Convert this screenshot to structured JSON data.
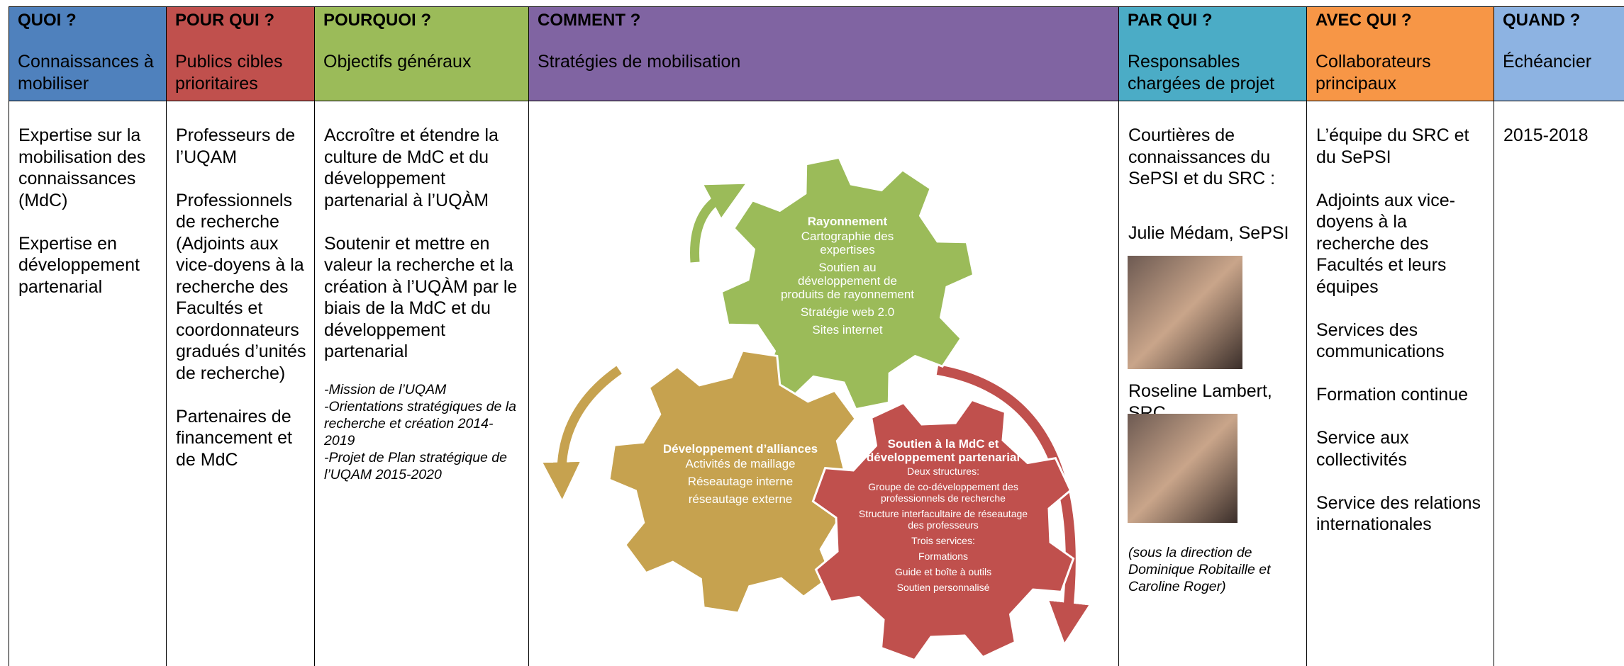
{
  "columns": [
    {
      "header": "QUOI ?",
      "subtitle": "Connaissances à mobiliser",
      "items": [
        "Expertise sur la mobilisation des connaissances (MdC)",
        "Expertise en développement partenarial"
      ]
    },
    {
      "header": "POUR QUI ?",
      "subtitle": "Publics cibles prioritaires",
      "items": [
        "Professeurs de l’UQAM",
        "Professionnels de recherche (Adjoints aux vice-doyens à la recherche des Facultés et coordonnateurs gradués d’unités de recherche)",
        "Partenaires de financement et de MdC"
      ]
    },
    {
      "header": "POURQUOI ?",
      "subtitle": "Objectifs généraux",
      "items": [
        "Accroître et étendre la culture de MdC et du développement partenarial à l’UQÀM",
        "Soutenir et mettre en valeur la recherche et la création à l’UQÀM par le biais de la MdC et du développement partenarial"
      ],
      "notes": [
        "-Mission de l’UQAM",
        "-Orientations stratégiques de la recherche et création 2014-2019",
        "-Projet de Plan stratégique de l’UQAM 2015-2020"
      ]
    },
    {
      "header": "COMMENT ?",
      "subtitle": "Stratégies de mobilisation",
      "gears": [
        {
          "title": "Rayonnement",
          "lines": [
            "Cartographie des expertises",
            "Soutien au développement de produits de rayonnement",
            "Stratégie web 2.0",
            "Sites internet"
          ]
        },
        {
          "title": "Développement d’alliances",
          "lines": [
            "Activités de maillage",
            "Réseautage interne",
            "réseautage externe"
          ]
        },
        {
          "title": "Soutien à la MdC et développement partenarial",
          "lines": [
            "Deux structures:",
            "Groupe de co-développement des professionnels de recherche",
            "Structure interfacultaire de réseautage des professeurs",
            "Trois services:",
            "Formations",
            "Guide et boîte à outils",
            "Soutien personnalisé"
          ]
        }
      ]
    },
    {
      "header": "PAR QUI ?",
      "subtitle": "Responsables chargées de projet",
      "items": [
        "Courtières de connaissances du SePSI et du SRC :"
      ],
      "people": [
        "Julie Médam, SePSI",
        "Roseline Lambert, SRC"
      ],
      "note": "(sous la direction de Dominique Robitaille et Caroline Roger)"
    },
    {
      "header": "AVEC QUI ?",
      "subtitle": "Collaborateurs principaux",
      "items": [
        "L’équipe du SRC et du SePSI",
        "Adjoints aux vice-doyens à la recherche des Facultés et leurs équipes",
        "Services des communications",
        "Formation continue",
        "Service aux collectivités",
        "Service des relations internationales"
      ]
    },
    {
      "header": "QUAND ?",
      "subtitle": "Échéancier",
      "items": [
        "2015-2018"
      ]
    }
  ]
}
